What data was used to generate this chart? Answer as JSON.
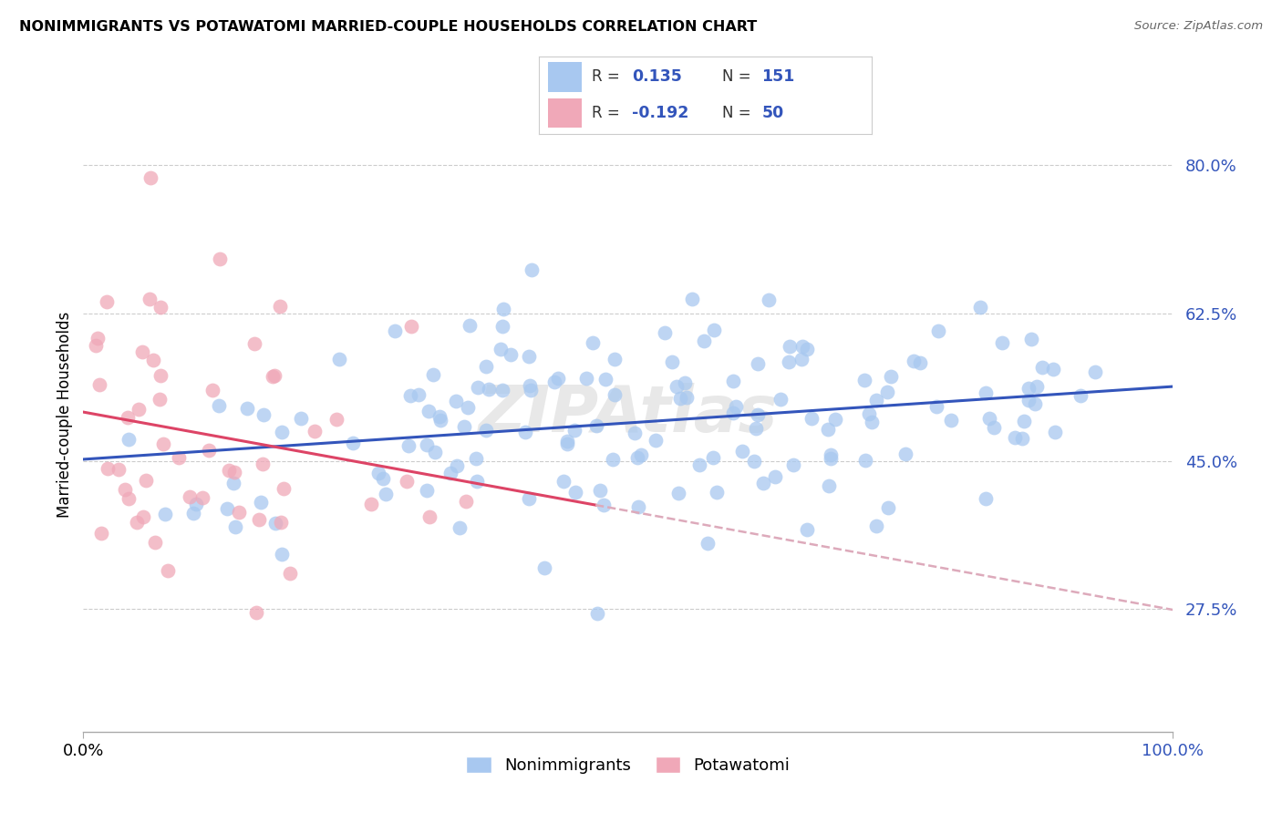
{
  "title": "NONIMMIGRANTS VS POTAWATOMI MARRIED-COUPLE HOUSEHOLDS CORRELATION CHART",
  "source": "Source: ZipAtlas.com",
  "ylabel": "Married-couple Households",
  "ytick_labels": [
    "27.5%",
    "45.0%",
    "62.5%",
    "80.0%"
  ],
  "ytick_values": [
    0.275,
    0.45,
    0.625,
    0.8
  ],
  "xlim": [
    0.0,
    1.0
  ],
  "ylim": [
    0.13,
    0.88
  ],
  "watermark": "ZIPAtlas",
  "blue_color": "#a8c8f0",
  "pink_color": "#f0a8b8",
  "blue_scatter_alpha": 0.75,
  "pink_scatter_alpha": 0.75,
  "scatter_size": 130,
  "blue_line_color": "#3355bb",
  "pink_line_color": "#dd4466",
  "pink_line_dashed_color": "#ddaabb",
  "nonimmigrants_R": 0.135,
  "potawatomi_R": -0.192,
  "nonimmigrants_N": 151,
  "potawatomi_N": 50,
  "grid_color": "#cccccc",
  "grid_style": "--",
  "legend_blue_patch": "#a8c8f0",
  "legend_pink_patch": "#f0a8b8",
  "legend_text_color": "#3355bb",
  "bottom_legend_labels": [
    "Nonimmigrants",
    "Potawatomi"
  ]
}
